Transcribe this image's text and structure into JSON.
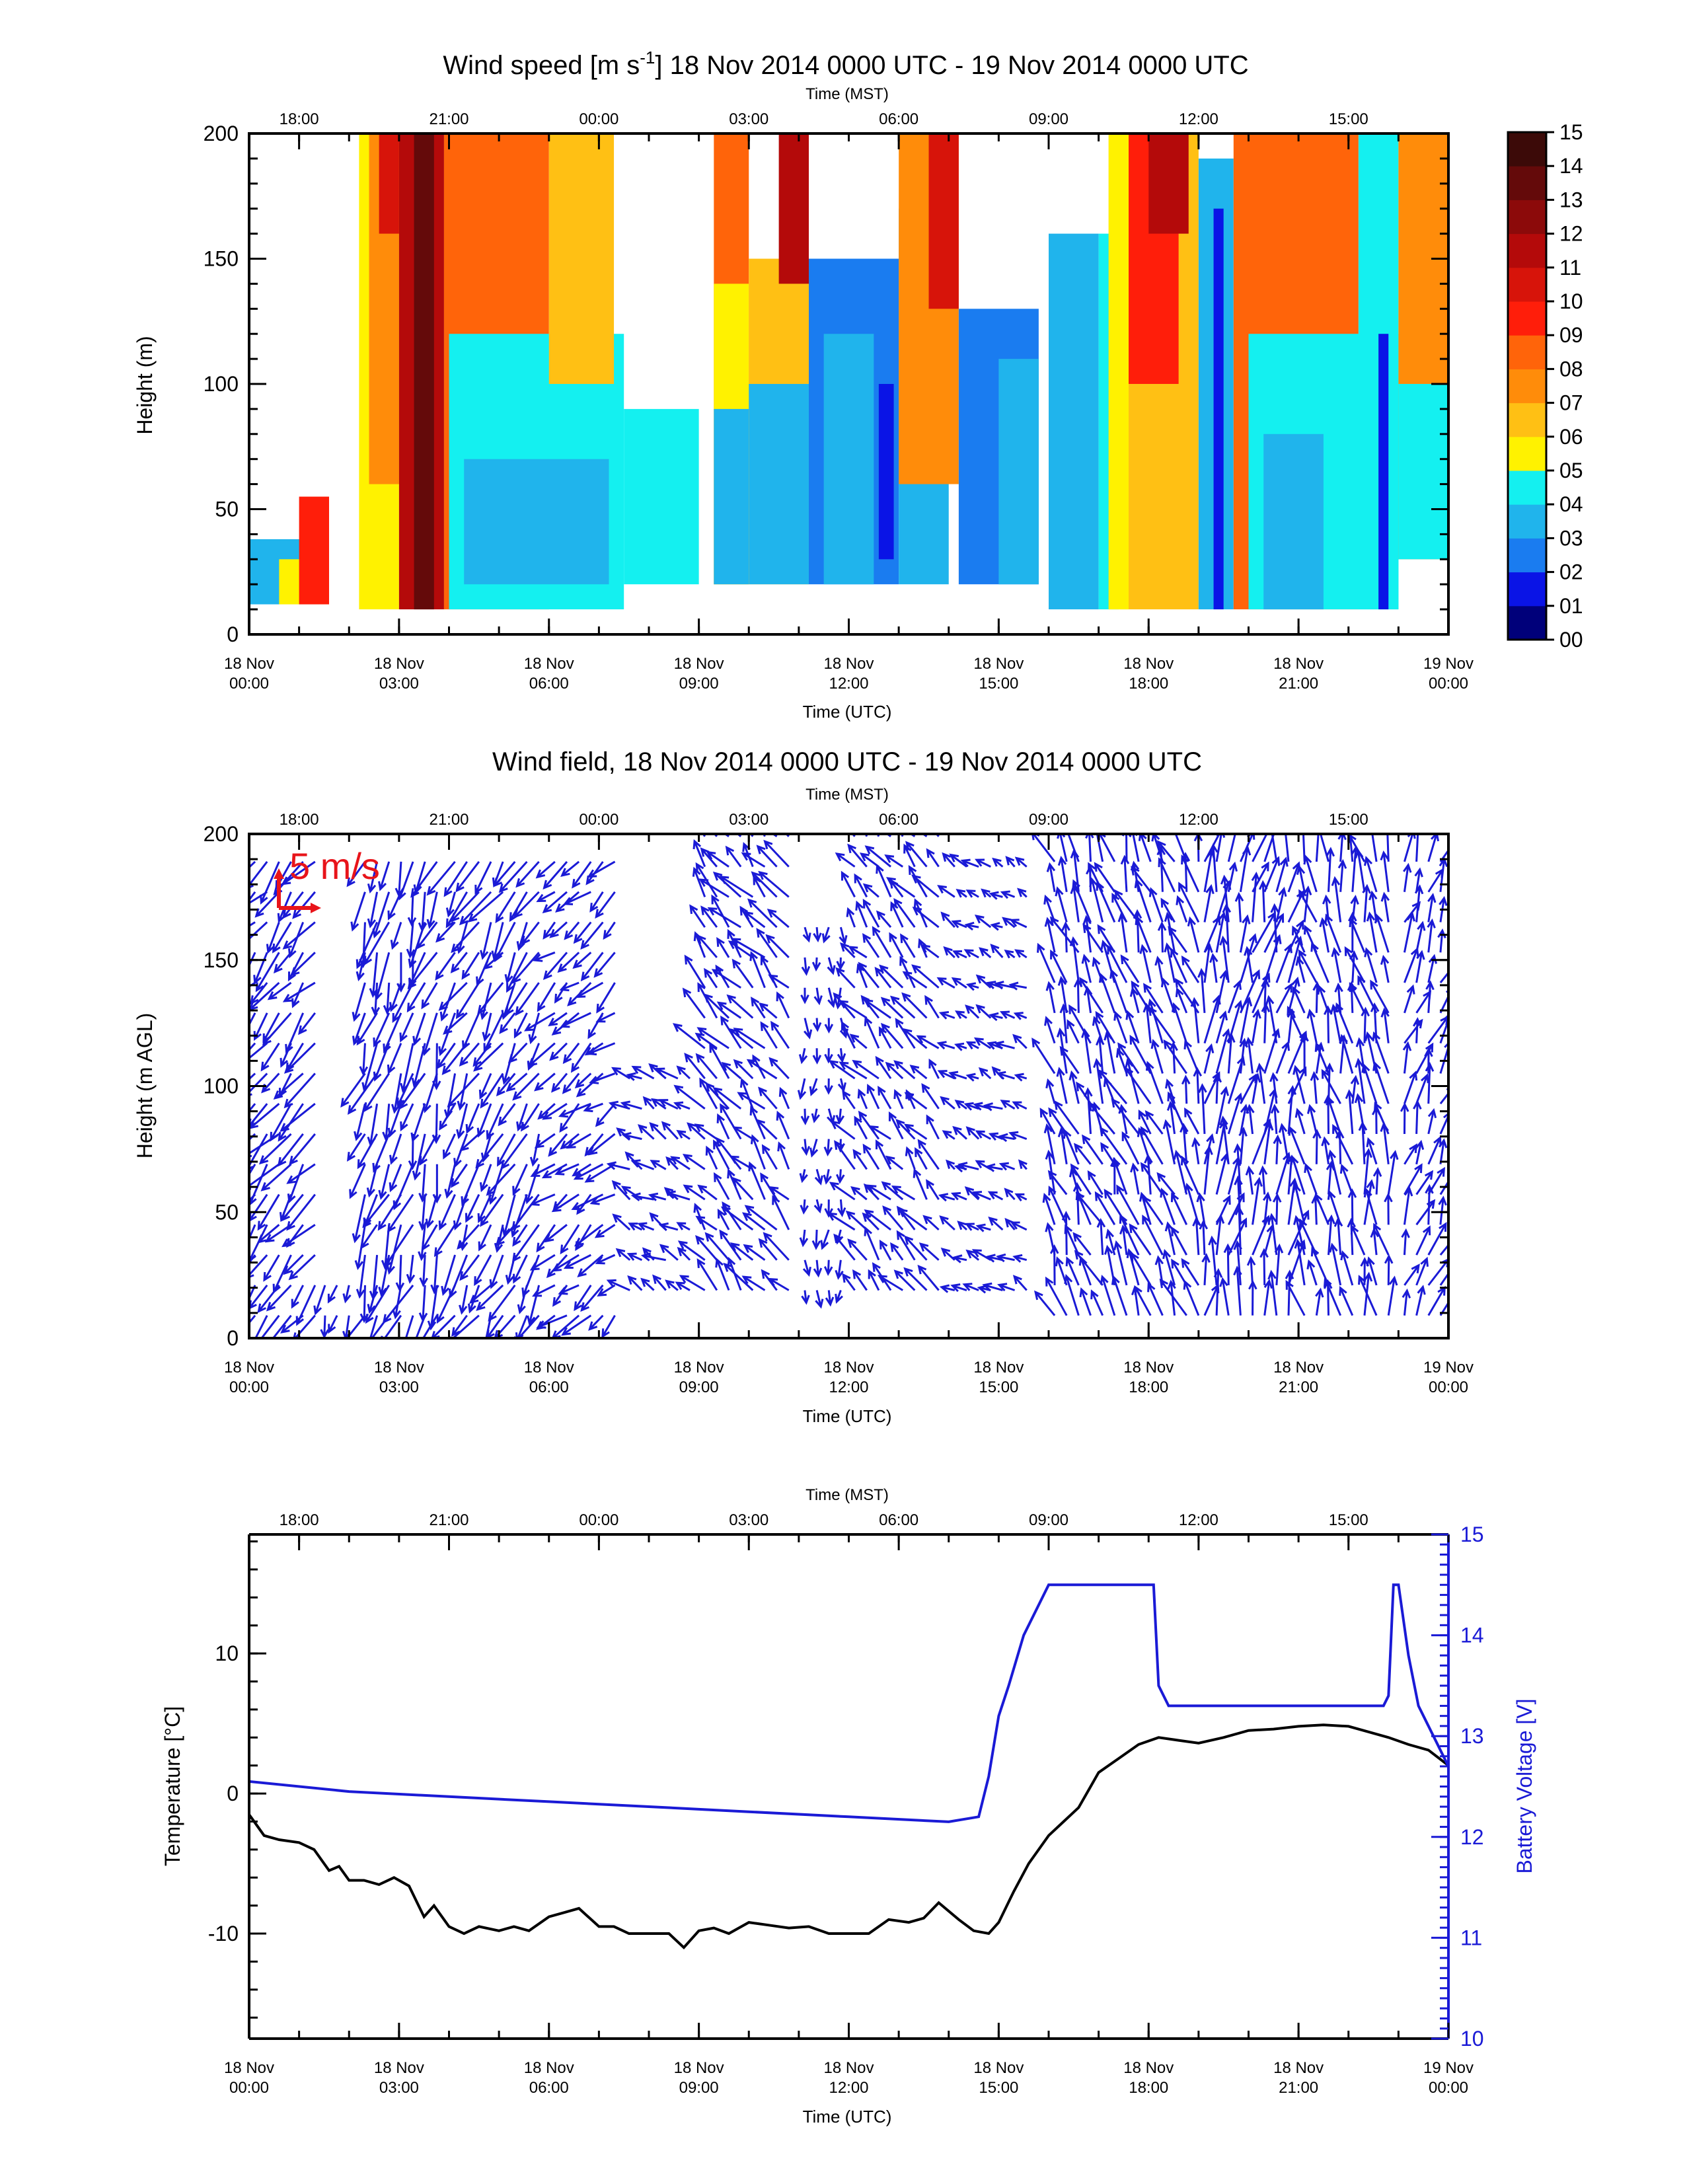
{
  "colors": {
    "axis": "#000000",
    "arrow": "#1a1ad6",
    "scale_arrow": "#e8141a",
    "temperature": "#000000",
    "battery": "#1a1ad6"
  },
  "utc_ticks": [
    {
      "line1": "18 Nov",
      "line2": "00:00",
      "hours": 0
    },
    {
      "line1": "18 Nov",
      "line2": "03:00",
      "hours": 3
    },
    {
      "line1": "18 Nov",
      "line2": "06:00",
      "hours": 6
    },
    {
      "line1": "18 Nov",
      "line2": "09:00",
      "hours": 9
    },
    {
      "line1": "18 Nov",
      "line2": "12:00",
      "hours": 12
    },
    {
      "line1": "18 Nov",
      "line2": "15:00",
      "hours": 15
    },
    {
      "line1": "18 Nov",
      "line2": "18:00",
      "hours": 18
    },
    {
      "line1": "18 Nov",
      "line2": "21:00",
      "hours": 21
    },
    {
      "line1": "19 Nov",
      "line2": "00:00",
      "hours": 24
    }
  ],
  "mst_ticks": [
    {
      "label": "18:00",
      "hours": 1
    },
    {
      "label": "21:00",
      "hours": 4
    },
    {
      "label": "00:00",
      "hours": 7
    },
    {
      "label": "03:00",
      "hours": 10
    },
    {
      "label": "06:00",
      "hours": 13
    },
    {
      "label": "09:00",
      "hours": 16
    },
    {
      "label": "12:00",
      "hours": 19
    },
    {
      "label": "15:00",
      "hours": 22
    }
  ],
  "chart_data": [
    {
      "type": "heatmap",
      "title_pre": "Wind speed [m s",
      "title_sup": "-1",
      "title_post": "] 18 Nov 2014 0000 UTC - 19 Nov 2014 0000 UTC",
      "xlabel": "Time (UTC)",
      "x2label": "Time (MST)",
      "ylabel": "Height (m)",
      "xlim_hours_utc": [
        0,
        24
      ],
      "ylim": [
        0,
        200
      ],
      "yticks": [
        0,
        50,
        100,
        150,
        200
      ],
      "colorbar": {
        "levels": [
          "00",
          "01",
          "02",
          "03",
          "04",
          "05",
          "06",
          "07",
          "08",
          "09",
          "10",
          "11",
          "12",
          "13",
          "14",
          "15"
        ],
        "colors": [
          "#00007a",
          "#0a14e6",
          "#1a7cf0",
          "#20b4ec",
          "#14f0f0",
          "#fff200",
          "#ffc014",
          "#ff8c0a",
          "#ff640a",
          "#ff1e0a",
          "#d7140a",
          "#b40a0a",
          "#8c0a0a",
          "#640a0a",
          "#3c0a08"
        ]
      },
      "columns": [
        {
          "t0": 0.0,
          "t1": 1.4,
          "bottom": 12,
          "top": 38,
          "speed": 3
        },
        {
          "t0": 0.6,
          "t1": 1.6,
          "bottom": 12,
          "top": 30,
          "speed": 5
        },
        {
          "t0": 1.0,
          "t1": 1.6,
          "bottom": 12,
          "top": 55,
          "speed": 9
        },
        {
          "t0": 2.2,
          "t1": 3.0,
          "bottom": 10,
          "top": 200,
          "speed": 5
        },
        {
          "t0": 2.4,
          "t1": 3.0,
          "bottom": 60,
          "top": 200,
          "speed": 7
        },
        {
          "t0": 2.6,
          "t1": 3.0,
          "bottom": 160,
          "top": 200,
          "speed": 10
        },
        {
          "t0": 3.0,
          "t1": 3.9,
          "bottom": 10,
          "top": 200,
          "speed": 11
        },
        {
          "t0": 3.3,
          "t1": 3.7,
          "bottom": 10,
          "top": 200,
          "speed": 13
        },
        {
          "t0": 3.9,
          "t1": 6.0,
          "bottom": 10,
          "top": 200,
          "speed": 8
        },
        {
          "t0": 4.0,
          "t1": 7.5,
          "bottom": 10,
          "top": 120,
          "speed": 4
        },
        {
          "t0": 4.3,
          "t1": 7.2,
          "bottom": 20,
          "top": 70,
          "speed": 3
        },
        {
          "t0": 6.0,
          "t1": 7.3,
          "bottom": 100,
          "top": 200,
          "speed": 6
        },
        {
          "t0": 7.5,
          "t1": 9.0,
          "bottom": 20,
          "top": 90,
          "speed": 4
        },
        {
          "t0": 9.3,
          "t1": 10.0,
          "bottom": 20,
          "top": 200,
          "speed": 8
        },
        {
          "t0": 9.3,
          "t1": 10.0,
          "bottom": 20,
          "top": 140,
          "speed": 5
        },
        {
          "t0": 9.3,
          "t1": 10.0,
          "bottom": 20,
          "top": 90,
          "speed": 3
        },
        {
          "t0": 10.0,
          "t1": 11.2,
          "bottom": 20,
          "top": 150,
          "speed": 6
        },
        {
          "t0": 10.0,
          "t1": 11.2,
          "bottom": 20,
          "top": 100,
          "speed": 3
        },
        {
          "t0": 10.6,
          "t1": 11.2,
          "bottom": 140,
          "top": 200,
          "speed": 11
        },
        {
          "t0": 11.2,
          "t1": 13.0,
          "bottom": 20,
          "top": 150,
          "speed": 2
        },
        {
          "t0": 11.5,
          "t1": 12.5,
          "bottom": 20,
          "top": 120,
          "speed": 3
        },
        {
          "t0": 12.6,
          "t1": 12.9,
          "bottom": 30,
          "top": 100,
          "speed": 1
        },
        {
          "t0": 13.0,
          "t1": 14.0,
          "bottom": 20,
          "top": 170,
          "speed": 3
        },
        {
          "t0": 13.0,
          "t1": 14.2,
          "bottom": 60,
          "top": 200,
          "speed": 7
        },
        {
          "t0": 13.6,
          "t1": 14.2,
          "bottom": 130,
          "top": 200,
          "speed": 10
        },
        {
          "t0": 14.2,
          "t1": 15.8,
          "bottom": 20,
          "top": 130,
          "speed": 2
        },
        {
          "t0": 15.0,
          "t1": 15.8,
          "bottom": 20,
          "top": 110,
          "speed": 3
        },
        {
          "t0": 16.0,
          "t1": 17.0,
          "bottom": 10,
          "top": 160,
          "speed": 3
        },
        {
          "t0": 17.0,
          "t1": 17.4,
          "bottom": 10,
          "top": 160,
          "speed": 4
        },
        {
          "t0": 17.2,
          "t1": 19.0,
          "bottom": 10,
          "top": 200,
          "speed": 6
        },
        {
          "t0": 17.6,
          "t1": 18.6,
          "bottom": 100,
          "top": 200,
          "speed": 9
        },
        {
          "t0": 18.0,
          "t1": 18.8,
          "bottom": 160,
          "top": 200,
          "speed": 11
        },
        {
          "t0": 17.2,
          "t1": 17.6,
          "bottom": 10,
          "top": 200,
          "speed": 5
        },
        {
          "t0": 19.0,
          "t1": 19.7,
          "bottom": 10,
          "top": 190,
          "speed": 3
        },
        {
          "t0": 19.3,
          "t1": 19.5,
          "bottom": 10,
          "top": 170,
          "speed": 1
        },
        {
          "t0": 19.7,
          "t1": 22.2,
          "bottom": 10,
          "top": 200,
          "speed": 8
        },
        {
          "t0": 20.0,
          "t1": 23.0,
          "bottom": 10,
          "top": 120,
          "speed": 4
        },
        {
          "t0": 20.3,
          "t1": 21.5,
          "bottom": 10,
          "top": 80,
          "speed": 3
        },
        {
          "t0": 22.2,
          "t1": 23.0,
          "bottom": 10,
          "top": 200,
          "speed": 4
        },
        {
          "t0": 22.6,
          "t1": 22.8,
          "bottom": 10,
          "top": 120,
          "speed": 1
        },
        {
          "t0": 23.0,
          "t1": 24.0,
          "bottom": 30,
          "top": 200,
          "speed": 7
        },
        {
          "t0": 23.0,
          "t1": 24.0,
          "bottom": 30,
          "top": 100,
          "speed": 4
        }
      ]
    },
    {
      "type": "quiver",
      "title": "Wind field, 18 Nov 2014 0000 UTC - 19 Nov 2014 0000 UTC",
      "xlabel": "Time (UTC)",
      "x2label": "Time (MST)",
      "ylabel": "Height (m AGL)",
      "xlim_hours_utc": [
        0,
        24
      ],
      "ylim": [
        0,
        200
      ],
      "yticks": [
        0,
        50,
        100,
        150,
        200
      ],
      "scale_label": "5 m/s",
      "scale_speed_ms": 5,
      "segments": [
        {
          "t0": 0.0,
          "t1": 1.4,
          "bottom": 5,
          "top": 200,
          "dir_deg": 220,
          "speed": 4.5
        },
        {
          "t0": 1.4,
          "t1": 2.2,
          "bottom": 5,
          "top": 30,
          "dir_deg": 200,
          "speed": 3
        },
        {
          "t0": 2.2,
          "t1": 4.0,
          "bottom": 5,
          "top": 200,
          "dir_deg": 200,
          "speed": 5
        },
        {
          "t0": 4.0,
          "t1": 6.0,
          "bottom": 5,
          "top": 200,
          "dir_deg": 210,
          "speed": 4.5
        },
        {
          "t0": 6.0,
          "t1": 7.5,
          "bottom": 5,
          "top": 200,
          "dir_deg": 230,
          "speed": 3.5
        },
        {
          "t0": 7.5,
          "t1": 9.0,
          "bottom": 15,
          "top": 110,
          "dir_deg": 300,
          "speed": 2.5
        },
        {
          "t0": 9.0,
          "t1": 11.0,
          "bottom": 15,
          "top": 200,
          "dir_deg": 320,
          "speed": 4
        },
        {
          "t0": 11.0,
          "t1": 12.0,
          "bottom": 15,
          "top": 170,
          "dir_deg": 180,
          "speed": 2
        },
        {
          "t0": 12.0,
          "t1": 14.0,
          "bottom": 15,
          "top": 200,
          "dir_deg": 320,
          "speed": 3.5
        },
        {
          "t0": 14.0,
          "t1": 15.8,
          "bottom": 15,
          "top": 190,
          "dir_deg": 300,
          "speed": 2
        },
        {
          "t0": 16.0,
          "t1": 19.0,
          "bottom": 5,
          "top": 200,
          "dir_deg": 340,
          "speed": 4.5
        },
        {
          "t0": 19.0,
          "t1": 21.0,
          "bottom": 5,
          "top": 200,
          "dir_deg": 10,
          "speed": 5
        },
        {
          "t0": 21.0,
          "t1": 23.0,
          "bottom": 5,
          "top": 200,
          "dir_deg": 350,
          "speed": 4.5
        },
        {
          "t0": 23.0,
          "t1": 24.0,
          "bottom": 5,
          "top": 200,
          "dir_deg": 20,
          "speed": 4
        }
      ]
    },
    {
      "type": "line",
      "xlabel": "Time (UTC)",
      "x2label": "Time (MST)",
      "ylabel": "Temperature [°C]",
      "y2label": "Battery Voltage [V]",
      "xlim_hours_utc": [
        0,
        24
      ],
      "ylim": [
        -17.5,
        18.5
      ],
      "yticks": [
        -10,
        0,
        10
      ],
      "y2lim": [
        10,
        15
      ],
      "y2ticks": [
        10,
        11,
        12,
        13,
        14,
        15
      ],
      "series": [
        {
          "name": "Temperature",
          "axis": "left",
          "x": [
            0,
            0.3,
            0.6,
            1.0,
            1.3,
            1.6,
            1.8,
            2.0,
            2.3,
            2.6,
            2.9,
            3.2,
            3.5,
            3.7,
            4.0,
            4.3,
            4.6,
            5.0,
            5.3,
            5.6,
            6.0,
            6.3,
            6.6,
            7.0,
            7.3,
            7.6,
            8.0,
            8.4,
            8.7,
            9.0,
            9.3,
            9.6,
            10.0,
            10.4,
            10.8,
            11.2,
            11.6,
            12.0,
            12.4,
            12.8,
            13.2,
            13.5,
            13.8,
            14.2,
            14.5,
            14.8,
            15.0,
            15.3,
            15.6,
            16.0,
            16.3,
            16.6,
            17.0,
            17.4,
            17.8,
            18.2,
            18.6,
            19.0,
            19.5,
            20.0,
            20.5,
            21.0,
            21.5,
            22.0,
            22.4,
            22.8,
            23.2,
            23.6,
            24.0
          ],
          "values": [
            -1.5,
            -3.0,
            -3.3,
            -3.5,
            -4.0,
            -5.5,
            -5.2,
            -6.2,
            -6.2,
            -6.5,
            -6.0,
            -6.6,
            -8.8,
            -8.0,
            -9.5,
            -10.0,
            -9.5,
            -9.8,
            -9.5,
            -9.8,
            -8.8,
            -8.5,
            -8.2,
            -9.5,
            -9.5,
            -10.0,
            -10.0,
            -10.0,
            -11.0,
            -9.8,
            -9.6,
            -10.0,
            -9.2,
            -9.4,
            -9.6,
            -9.5,
            -10.0,
            -10.0,
            -10.0,
            -9.0,
            -9.2,
            -8.9,
            -7.8,
            -9.0,
            -9.8,
            -10.0,
            -9.2,
            -7.0,
            -5.0,
            -3.0,
            -2.0,
            -1.0,
            1.5,
            2.5,
            3.5,
            4.0,
            3.8,
            3.6,
            4.0,
            4.5,
            4.6,
            4.8,
            4.9,
            4.8,
            4.4,
            4.0,
            3.5,
            3.1,
            2.0
          ]
        },
        {
          "name": "Battery Voltage",
          "axis": "right",
          "x": [
            0,
            2,
            4,
            6,
            8,
            10,
            12,
            14,
            14.6,
            14.8,
            15.0,
            15.2,
            15.5,
            16.0,
            16.4,
            16.6,
            17.0,
            17.5,
            18.1,
            18.2,
            18.4,
            18.6,
            19.0,
            20.0,
            21.0,
            22.0,
            22.5,
            22.6,
            22.7,
            22.8,
            22.9,
            23.0,
            23.2,
            23.4,
            23.7,
            24.0
          ],
          "values": [
            12.55,
            12.45,
            12.4,
            12.35,
            12.3,
            12.25,
            12.2,
            12.15,
            12.2,
            12.6,
            13.2,
            13.5,
            14.0,
            14.5,
            14.5,
            14.5,
            14.5,
            14.5,
            14.5,
            13.5,
            13.3,
            13.3,
            13.3,
            13.3,
            13.3,
            13.3,
            13.3,
            13.3,
            13.3,
            13.4,
            14.5,
            14.5,
            13.8,
            13.3,
            13.0,
            12.7
          ]
        }
      ]
    }
  ]
}
